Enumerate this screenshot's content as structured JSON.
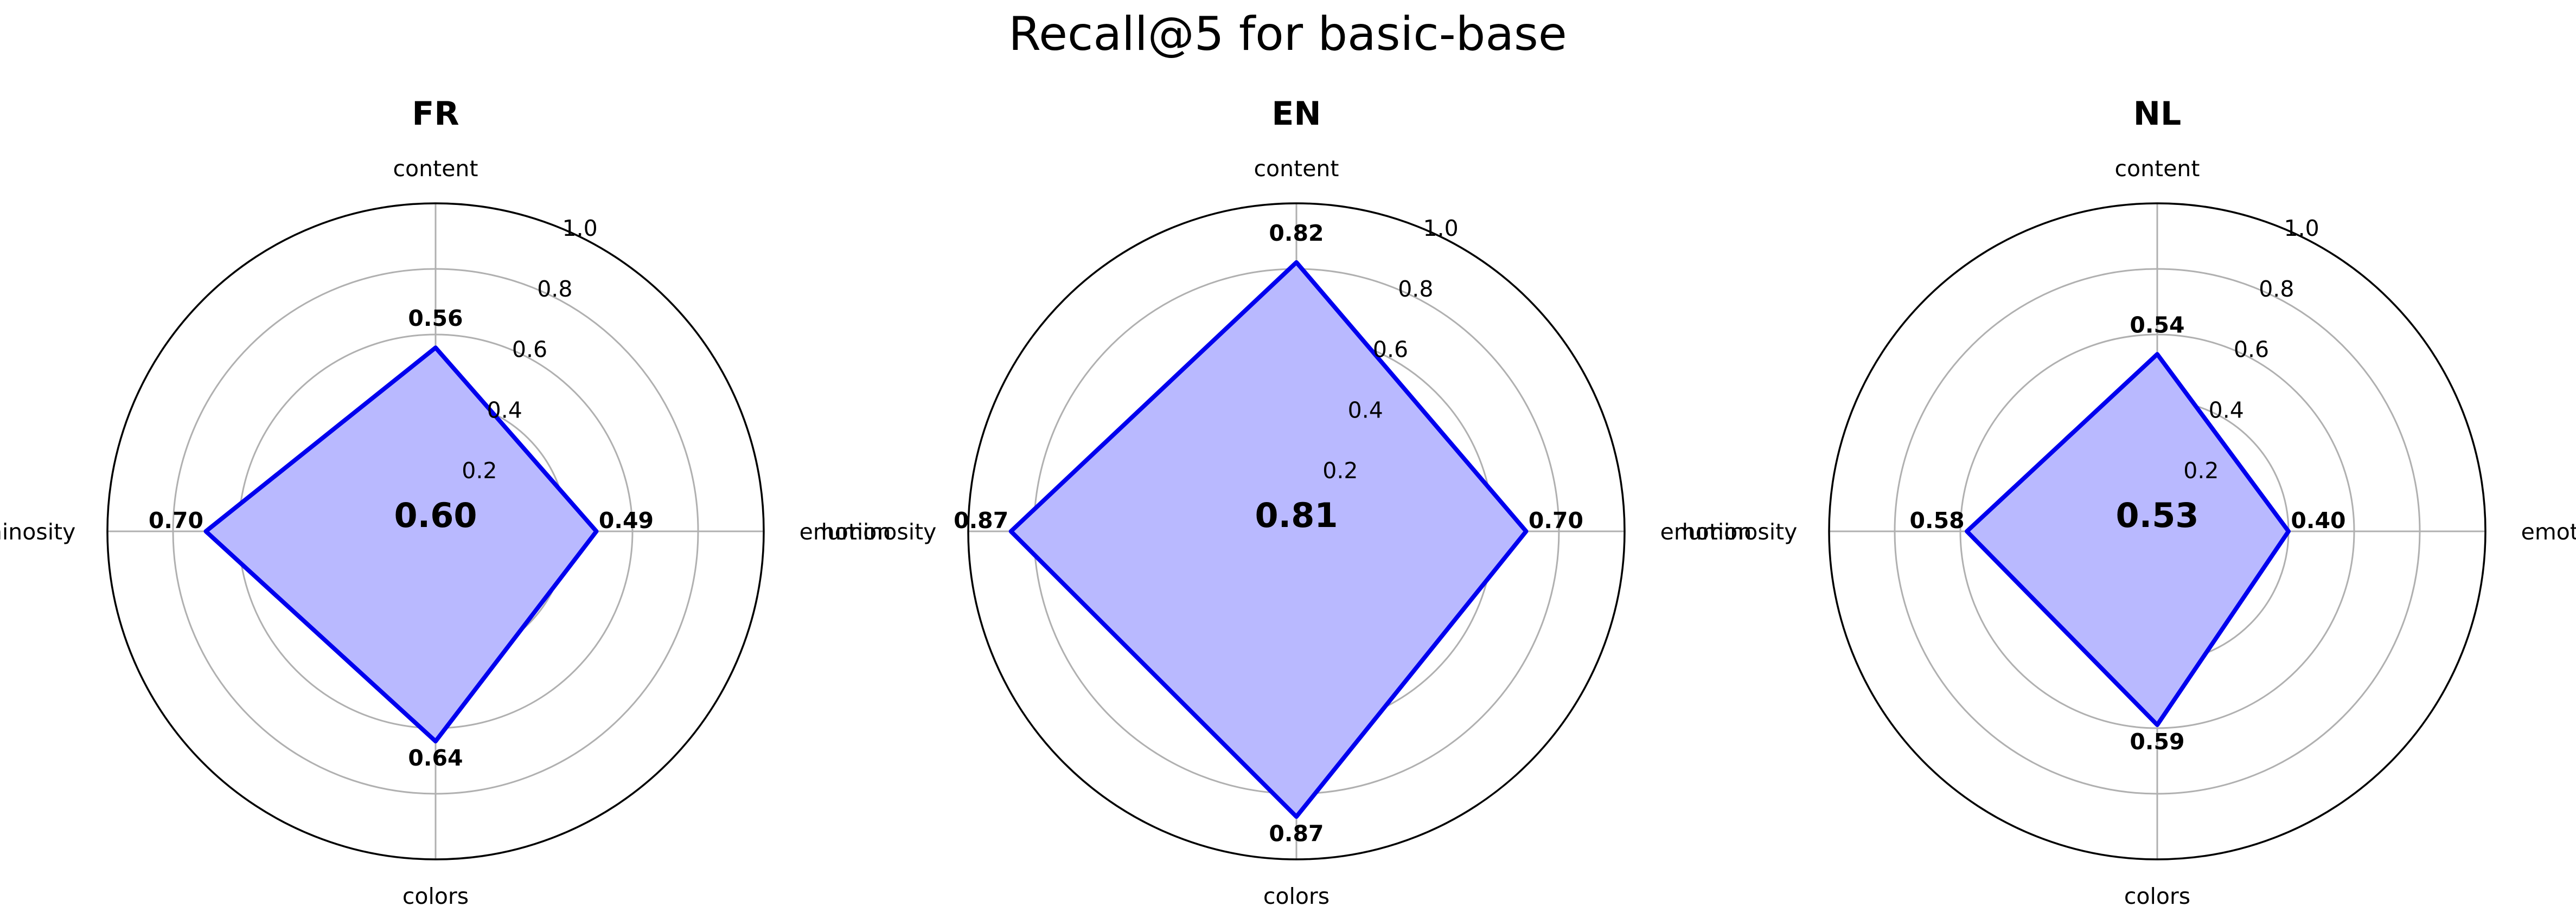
{
  "chart_data": {
    "type": "radar",
    "title": "Recall@5 for basic-base",
    "axes": [
      "content",
      "emotion",
      "colors",
      "luminosity"
    ],
    "rlim": [
      0,
      1.0
    ],
    "rticks": [
      "0.2",
      "0.4",
      "0.6",
      "0.8",
      "1.0"
    ],
    "grid": true,
    "colors": {
      "line": "#0000ee",
      "fill": "#b9b9ff",
      "grid": "#b0b0b0",
      "outer": "#000000"
    },
    "panels": [
      {
        "title": "FR",
        "values": [
          0.56,
          0.49,
          0.64,
          0.7
        ],
        "value_labels": [
          "0.56",
          "0.49",
          "0.64",
          "0.70"
        ],
        "mean": 0.6,
        "mean_label": "0.60"
      },
      {
        "title": "EN",
        "values": [
          0.82,
          0.7,
          0.87,
          0.87
        ],
        "value_labels": [
          "0.82",
          "0.70",
          "0.87",
          "0.87"
        ],
        "mean": 0.81,
        "mean_label": "0.81"
      },
      {
        "title": "NL",
        "values": [
          0.54,
          0.4,
          0.59,
          0.58
        ],
        "value_labels": [
          "0.54",
          "0.40",
          "0.59",
          "0.58"
        ],
        "mean": 0.53,
        "mean_label": "0.53"
      }
    ]
  }
}
